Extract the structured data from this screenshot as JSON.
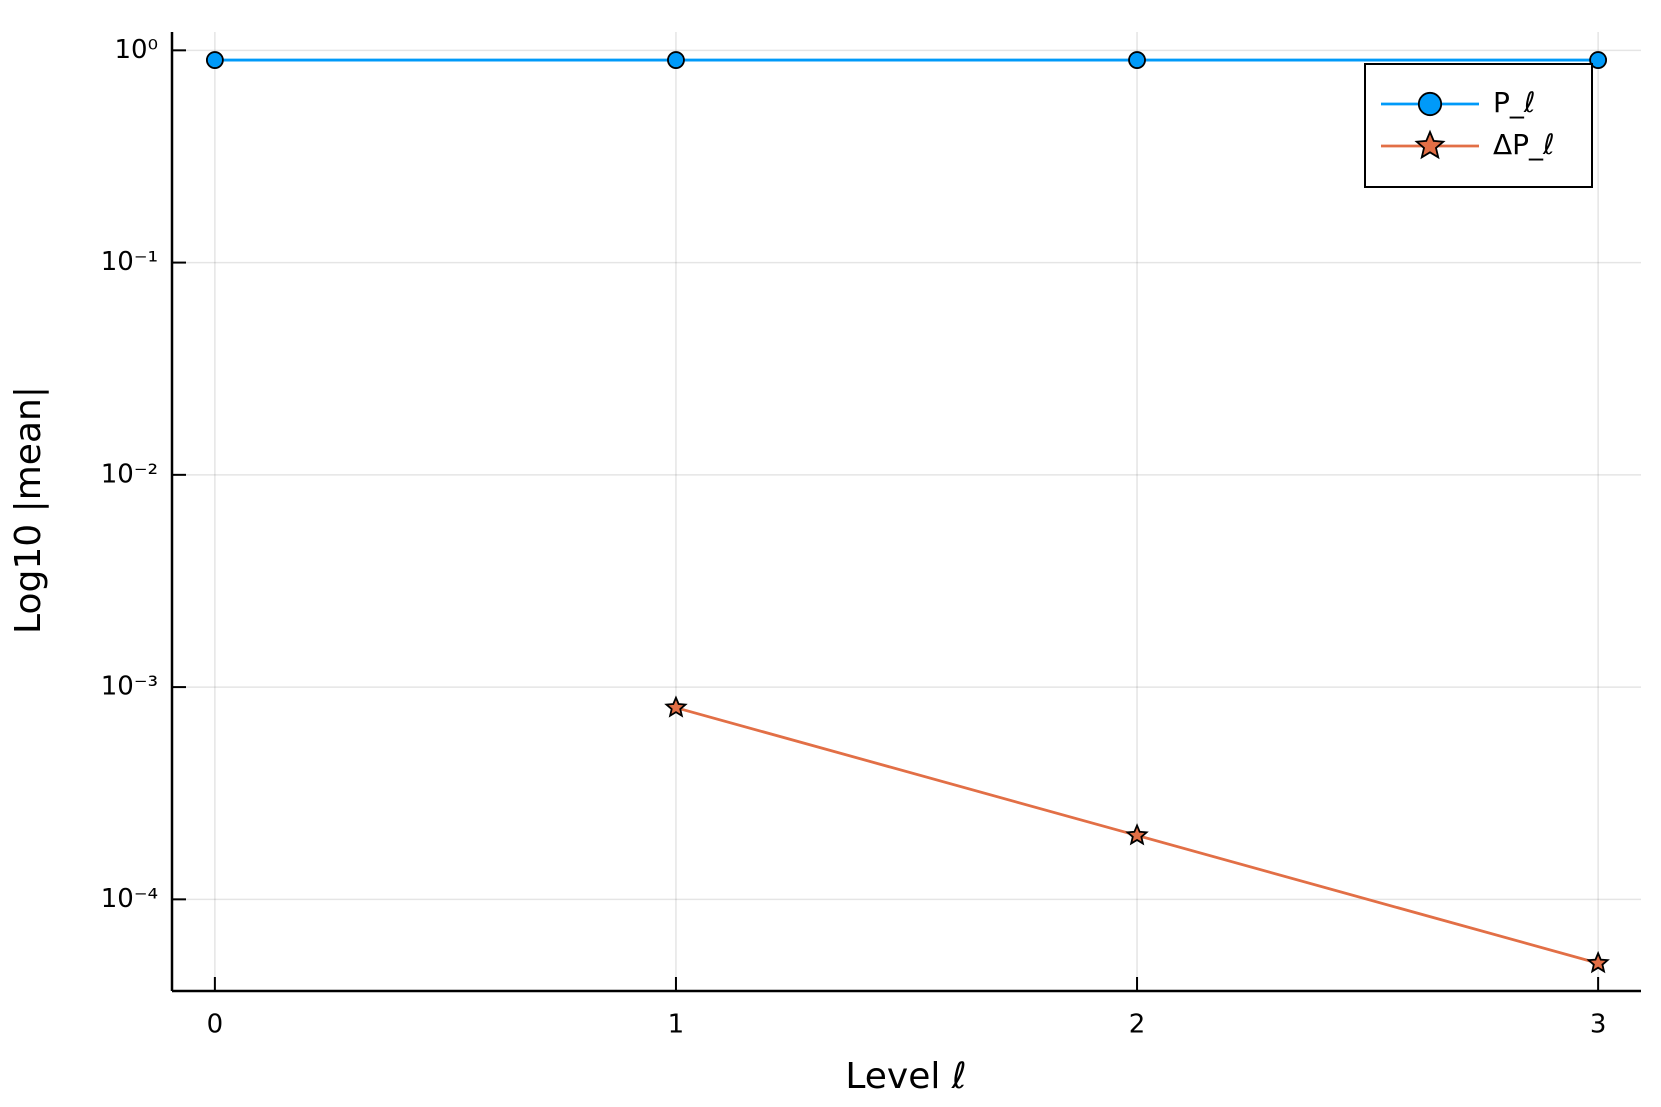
{
  "chart_data": {
    "type": "line",
    "x_label": "Level ℓ",
    "y_label": "Log10 |mean|",
    "x": [
      0,
      1,
      2,
      3
    ],
    "series": [
      {
        "name": "P_ℓ",
        "color": "#009af9",
        "marker": "circle",
        "values": [
          0.9,
          0.9,
          0.9,
          0.9
        ]
      },
      {
        "name": "ΔP_ℓ",
        "color": "#e26f46",
        "marker": "star",
        "values": [
          null,
          0.0008,
          0.0002,
          5e-05
        ]
      }
    ],
    "xlim": [
      -0.093,
      3.093
    ],
    "xticks": [
      0,
      1,
      2,
      3
    ],
    "ylim": [
      3.7e-05,
      1.22
    ],
    "ylog": true,
    "yticks": [
      {
        "value": 0.0001,
        "label": "10⁻⁴"
      },
      {
        "value": 0.001,
        "label": "10⁻³"
      },
      {
        "value": 0.01,
        "label": "10⁻²"
      },
      {
        "value": 0.1,
        "label": "10⁻¹"
      },
      {
        "value": 1,
        "label": "10⁰"
      }
    ],
    "grid": true,
    "legend": "top-right"
  }
}
